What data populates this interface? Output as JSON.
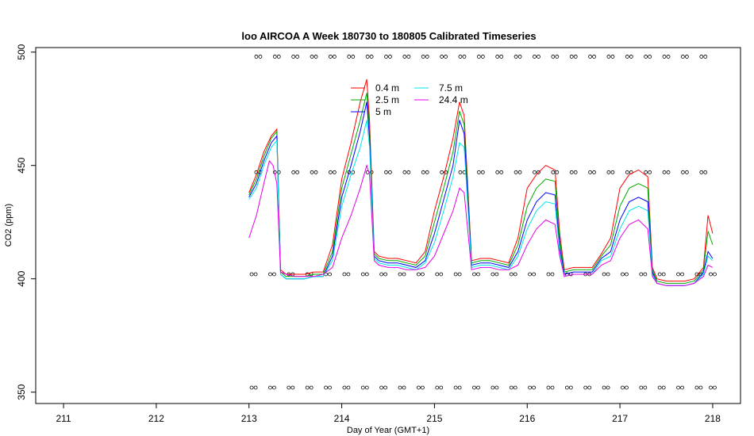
{
  "chart_data": {
    "type": "line",
    "title": "loo AIRCOA A  Week 180730 to 180805  Calibrated Timeseries",
    "xlabel": "Day of Year (GMT+1)",
    "ylabel": "CO2 (ppm)",
    "xlim": [
      210.7,
      218.3
    ],
    "ylim": [
      345,
      502
    ],
    "xticks": [
      211,
      212,
      213,
      214,
      215,
      216,
      217,
      218
    ],
    "yticks": [
      350,
      400,
      450,
      500
    ],
    "grid": false,
    "legend_position": "top-center",
    "series": [
      {
        "name": "0.4 m",
        "color": "#ff0000",
        "x": [
          213.0,
          213.08,
          213.16,
          213.24,
          213.3,
          213.34,
          213.4,
          213.5,
          213.6,
          213.7,
          213.8,
          213.9,
          214.0,
          214.1,
          214.2,
          214.27,
          214.3,
          214.35,
          214.4,
          214.5,
          214.6,
          214.7,
          214.8,
          214.9,
          215.0,
          215.1,
          215.2,
          215.27,
          215.32,
          215.4,
          215.5,
          215.6,
          215.7,
          215.8,
          215.9,
          216.0,
          216.1,
          216.2,
          216.3,
          216.35,
          216.4,
          216.5,
          216.6,
          216.7,
          216.8,
          216.9,
          217.0,
          217.1,
          217.2,
          217.3,
          217.35,
          217.4,
          217.5,
          217.6,
          217.7,
          217.8,
          217.9,
          217.95,
          218.0
        ],
        "values": [
          438,
          446,
          456,
          463,
          466,
          404,
          402,
          402,
          402,
          403,
          403,
          415,
          444,
          460,
          478,
          488,
          470,
          412,
          410,
          409,
          409,
          408,
          407,
          412,
          430,
          445,
          462,
          478,
          472,
          408,
          409,
          409,
          408,
          407,
          418,
          440,
          446,
          450,
          448,
          420,
          404,
          405,
          405,
          405,
          411,
          418,
          440,
          446,
          448,
          445,
          405,
          400,
          399,
          399,
          399,
          400,
          405,
          428,
          420
        ]
      },
      {
        "name": "2.5 m",
        "color": "#00aa00",
        "x": [
          213.0,
          213.08,
          213.16,
          213.24,
          213.3,
          213.34,
          213.4,
          213.5,
          213.6,
          213.7,
          213.8,
          213.9,
          214.0,
          214.1,
          214.2,
          214.27,
          214.3,
          214.35,
          214.4,
          214.5,
          214.6,
          214.7,
          214.8,
          214.9,
          215.0,
          215.1,
          215.2,
          215.27,
          215.32,
          215.4,
          215.5,
          215.6,
          215.7,
          215.8,
          215.9,
          216.0,
          216.1,
          216.2,
          216.3,
          216.35,
          216.4,
          216.5,
          216.6,
          216.7,
          216.8,
          216.9,
          217.0,
          217.1,
          217.2,
          217.3,
          217.35,
          217.4,
          217.5,
          217.6,
          217.7,
          217.8,
          217.9,
          217.95,
          218.0
        ],
        "values": [
          437,
          444,
          454,
          462,
          465,
          403,
          401,
          401,
          401,
          402,
          402,
          412,
          440,
          455,
          470,
          482,
          466,
          411,
          409,
          408,
          408,
          407,
          406,
          410,
          425,
          440,
          456,
          474,
          468,
          407,
          408,
          408,
          407,
          406,
          415,
          432,
          440,
          444,
          443,
          417,
          403,
          404,
          404,
          404,
          410,
          415,
          432,
          440,
          442,
          440,
          404,
          399,
          398,
          398,
          398,
          399,
          404,
          421,
          415
        ]
      },
      {
        "name": "5 m",
        "color": "#0000ff",
        "x": [
          213.0,
          213.08,
          213.16,
          213.24,
          213.3,
          213.34,
          213.4,
          213.5,
          213.6,
          213.7,
          213.8,
          213.9,
          214.0,
          214.1,
          214.2,
          214.27,
          214.3,
          214.35,
          214.4,
          214.5,
          214.6,
          214.7,
          214.8,
          214.9,
          215.0,
          215.1,
          215.2,
          215.27,
          215.32,
          215.4,
          215.5,
          215.6,
          215.7,
          215.8,
          215.9,
          216.0,
          216.1,
          216.2,
          216.3,
          216.35,
          216.4,
          216.5,
          216.6,
          216.7,
          216.8,
          216.9,
          217.0,
          217.1,
          217.2,
          217.3,
          217.35,
          217.4,
          217.5,
          217.6,
          217.7,
          217.8,
          217.9,
          217.95,
          218.0
        ],
        "values": [
          436,
          442,
          452,
          460,
          463,
          402,
          400,
          400,
          400,
          401,
          401,
          410,
          436,
          450,
          465,
          478,
          462,
          410,
          408,
          407,
          407,
          406,
          405,
          408,
          420,
          435,
          450,
          470,
          464,
          406,
          407,
          407,
          406,
          405,
          412,
          426,
          434,
          438,
          437,
          414,
          402,
          403,
          403,
          403,
          409,
          412,
          426,
          434,
          436,
          434,
          403,
          398,
          397,
          397,
          397,
          398,
          403,
          412,
          409
        ]
      },
      {
        "name": "7.5 m",
        "color": "#00e5e5",
        "x": [
          213.0,
          213.08,
          213.16,
          213.24,
          213.3,
          213.34,
          213.4,
          213.5,
          213.6,
          213.7,
          213.8,
          213.9,
          214.0,
          214.1,
          214.2,
          214.27,
          214.3,
          214.35,
          214.4,
          214.5,
          214.6,
          214.7,
          214.8,
          214.9,
          215.0,
          215.1,
          215.2,
          215.27,
          215.32,
          215.4,
          215.5,
          215.6,
          215.7,
          215.8,
          215.9,
          216.0,
          216.1,
          216.2,
          216.3,
          216.35,
          216.4,
          216.5,
          216.6,
          216.7,
          216.8,
          216.9,
          217.0,
          217.1,
          217.2,
          217.3,
          217.35,
          217.4,
          217.5,
          217.6,
          217.7,
          217.8,
          217.9,
          217.95,
          218.0
        ],
        "values": [
          435,
          440,
          450,
          458,
          461,
          402,
          400,
          400,
          400,
          401,
          401,
          408,
          432,
          446,
          458,
          470,
          458,
          409,
          407,
          406,
          406,
          405,
          404,
          407,
          416,
          430,
          445,
          460,
          458,
          405,
          406,
          406,
          405,
          404,
          410,
          422,
          430,
          434,
          433,
          412,
          401,
          402,
          402,
          402,
          408,
          410,
          422,
          430,
          432,
          430,
          402,
          398,
          397,
          397,
          397,
          398,
          402,
          410,
          408
        ]
      },
      {
        "name": "24.4 m",
        "color": "#e600e6",
        "x": [
          213.0,
          213.08,
          213.16,
          213.22,
          213.26,
          213.3,
          213.34,
          213.4,
          213.5,
          213.6,
          213.7,
          213.8,
          213.9,
          214.0,
          214.1,
          214.2,
          214.27,
          214.3,
          214.35,
          214.4,
          214.5,
          214.6,
          214.7,
          214.8,
          214.9,
          215.0,
          215.1,
          215.2,
          215.27,
          215.32,
          215.4,
          215.5,
          215.6,
          215.7,
          215.8,
          215.9,
          216.0,
          216.1,
          216.2,
          216.3,
          216.35,
          216.4,
          216.5,
          216.6,
          216.7,
          216.8,
          216.9,
          217.0,
          217.1,
          217.2,
          217.3,
          217.35,
          217.4,
          217.5,
          217.6,
          217.7,
          217.8,
          217.9,
          217.95,
          218.0
        ],
        "values": [
          418,
          428,
          442,
          452,
          450,
          442,
          403,
          402,
          401,
          401,
          401,
          402,
          405,
          418,
          428,
          440,
          450,
          446,
          408,
          406,
          405,
          405,
          404,
          404,
          405,
          410,
          420,
          430,
          440,
          438,
          404,
          405,
          405,
          404,
          404,
          406,
          415,
          422,
          426,
          424,
          410,
          401,
          402,
          402,
          402,
          406,
          408,
          418,
          424,
          426,
          422,
          401,
          398,
          397,
          397,
          397,
          398,
          401,
          406,
          405
        ]
      }
    ],
    "reference_marker_rows": [
      {
        "y": 498,
        "x": [
          213.1,
          213.3,
          213.5,
          213.7,
          213.9,
          214.1,
          214.3,
          214.5,
          214.7,
          214.9,
          215.1,
          215.3,
          215.5,
          215.7,
          215.9,
          216.1,
          216.3,
          216.5,
          216.7,
          216.9,
          217.1,
          217.3,
          217.5,
          217.7,
          217.9
        ]
      },
      {
        "y": 447,
        "x": [
          213.1,
          213.3,
          213.5,
          213.7,
          213.9,
          214.1,
          214.3,
          214.5,
          214.7,
          214.9,
          215.1,
          215.3,
          215.5,
          215.7,
          215.9,
          216.1,
          216.3,
          216.5,
          216.7,
          216.9,
          217.1,
          217.3,
          217.5,
          217.7,
          217.9
        ]
      },
      {
        "y": 402,
        "x": [
          213.05,
          213.25,
          213.45,
          213.65,
          213.85,
          214.05,
          214.25,
          214.45,
          214.65,
          214.85,
          215.05,
          215.25,
          215.45,
          215.65,
          215.85,
          216.05,
          216.25,
          216.45,
          216.65,
          216.85,
          217.05,
          217.25,
          217.45,
          217.65,
          217.85,
          218.0
        ]
      },
      {
        "y": 352,
        "x": [
          213.05,
          213.25,
          213.45,
          213.65,
          213.85,
          214.05,
          214.25,
          214.45,
          214.65,
          214.85,
          215.05,
          215.25,
          215.45,
          215.65,
          215.85,
          216.05,
          216.25,
          216.45,
          216.65,
          216.85,
          217.05,
          217.25,
          217.45,
          217.65,
          217.85,
          218.0
        ]
      }
    ]
  }
}
